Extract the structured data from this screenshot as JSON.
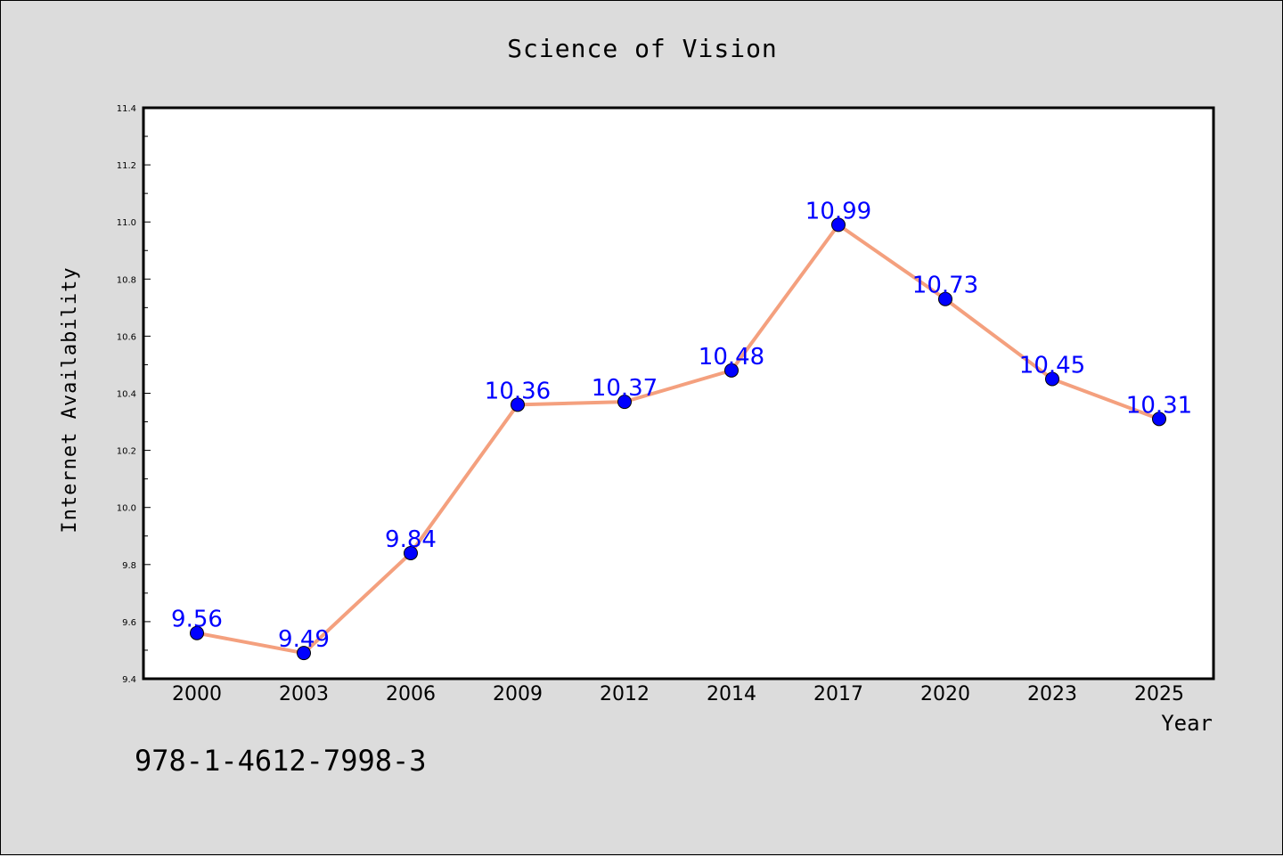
{
  "chart_data": {
    "type": "line",
    "title": "Science of Vision",
    "xlabel": "Year",
    "ylabel": "Internet Availability",
    "categories": [
      "2000",
      "2003",
      "2006",
      "2009",
      "2012",
      "2014",
      "2017",
      "2020",
      "2023",
      "2025"
    ],
    "series": [
      {
        "values": [
          9.56,
          9.49,
          9.84,
          10.36,
          10.37,
          10.48,
          10.99,
          10.73,
          10.45,
          10.31
        ]
      }
    ],
    "data_labels": [
      "9.56",
      "9.49",
      "9.84",
      "10.36",
      "10.37",
      "10.48",
      "10.99",
      "10.73",
      "10.45",
      "10.31"
    ],
    "ylim": [
      9.4,
      11.4
    ],
    "yticks": [
      "9.4",
      "9.6",
      "9.8",
      "10.0",
      "10.2",
      "10.4",
      "10.6",
      "10.8",
      "11.0",
      "11.2",
      "11.4"
    ],
    "grid": false,
    "line_color": "#f4a07e",
    "marker_color": "#0000ff",
    "label_color": "#0000ff"
  },
  "footer": {
    "isbn": "978-1-4612-7998-3"
  }
}
